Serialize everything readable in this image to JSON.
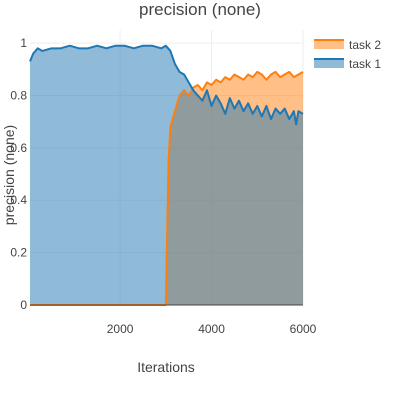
{
  "chart_data": {
    "type": "area",
    "title": "precision (none)",
    "xlabel": "Iterations",
    "ylabel": "precision (none)",
    "xlim": [
      30,
      6000
    ],
    "ylim": [
      0,
      1.05
    ],
    "x_ticks": [
      2000,
      4000,
      6000
    ],
    "y_ticks": [
      0,
      0.2,
      0.4,
      0.6,
      0.8,
      1
    ],
    "y_tick_labels": [
      "0",
      "0.2",
      "0.4",
      "0.6",
      "0.8",
      "1"
    ],
    "grid": true,
    "legend_position": "top-right",
    "series": [
      {
        "name": "task 2",
        "color": "#ff7f0e",
        "fill": "rgba(255,127,14,0.5)",
        "x": [
          30,
          500,
          1000,
          1500,
          2000,
          2500,
          2900,
          3000,
          3060,
          3100,
          3200,
          3300,
          3400,
          3500,
          3600,
          3700,
          3800,
          3900,
          4000,
          4100,
          4200,
          4300,
          4400,
          4500,
          4600,
          4700,
          4800,
          4900,
          5000,
          5100,
          5200,
          5300,
          5400,
          5500,
          5600,
          5700,
          5800,
          5900,
          6000
        ],
        "y": [
          0,
          0,
          0,
          0,
          0,
          0,
          0,
          0,
          0.55,
          0.68,
          0.74,
          0.8,
          0.82,
          0.8,
          0.83,
          0.84,
          0.82,
          0.85,
          0.84,
          0.86,
          0.85,
          0.87,
          0.86,
          0.88,
          0.87,
          0.86,
          0.88,
          0.87,
          0.89,
          0.88,
          0.86,
          0.88,
          0.89,
          0.87,
          0.88,
          0.89,
          0.87,
          0.88,
          0.89
        ]
      },
      {
        "name": "task 1",
        "color": "#1f77b4",
        "fill": "rgba(31,119,180,0.5)",
        "x": [
          30,
          100,
          200,
          300,
          500,
          700,
          900,
          1100,
          1300,
          1500,
          1700,
          1900,
          2100,
          2300,
          2500,
          2700,
          2900,
          3000,
          3100,
          3200,
          3300,
          3400,
          3500,
          3600,
          3700,
          3800,
          3900,
          4000,
          4100,
          4200,
          4300,
          4400,
          4500,
          4600,
          4700,
          4800,
          4900,
          5000,
          5100,
          5200,
          5300,
          5400,
          5500,
          5600,
          5700,
          5800,
          5850,
          5900,
          6000
        ],
        "y": [
          0.93,
          0.96,
          0.98,
          0.97,
          0.98,
          0.98,
          0.99,
          0.98,
          0.98,
          0.99,
          0.98,
          0.99,
          0.99,
          0.98,
          0.99,
          0.99,
          0.98,
          0.99,
          0.97,
          0.92,
          0.89,
          0.88,
          0.85,
          0.82,
          0.8,
          0.78,
          0.82,
          0.76,
          0.8,
          0.77,
          0.73,
          0.79,
          0.75,
          0.78,
          0.74,
          0.77,
          0.73,
          0.76,
          0.72,
          0.76,
          0.71,
          0.75,
          0.73,
          0.75,
          0.71,
          0.74,
          0.69,
          0.74,
          0.73
        ]
      }
    ]
  }
}
